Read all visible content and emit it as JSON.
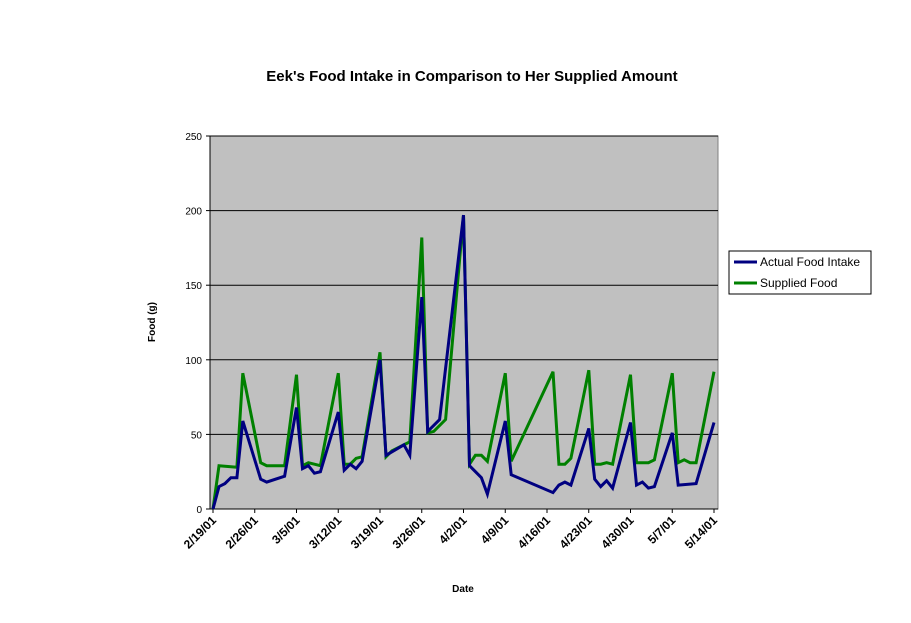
{
  "chart_data": {
    "type": "line",
    "title": "Eek's Food Intake in Comparison to Her Supplied Amount",
    "xlabel": "Date",
    "ylabel": "Food (g)",
    "ylim": [
      0,
      250
    ],
    "yticks": [
      0,
      50,
      100,
      150,
      200,
      250
    ],
    "xlim": [
      "2001-02-19",
      "2001-05-14"
    ],
    "xtick_labels": [
      "2/19/01",
      "2/26/01",
      "3/5/01",
      "3/12/01",
      "3/19/01",
      "3/26/01",
      "4/2/01",
      "4/9/01",
      "4/16/01",
      "4/23/01",
      "4/30/01",
      "5/7/01",
      "5/14/01"
    ],
    "grid": "horizontal",
    "legend_position": "right",
    "plot_background": "#c0c0c0",
    "series": [
      {
        "name": "Actual Food Intake",
        "color": "#000080",
        "points": [
          [
            "2001-02-19",
            0
          ],
          [
            "2001-02-20",
            15
          ],
          [
            "2001-02-21",
            17
          ],
          [
            "2001-02-22",
            21
          ],
          [
            "2001-02-23",
            21
          ],
          [
            "2001-02-24",
            59
          ],
          [
            "2001-02-27",
            20
          ],
          [
            "2001-02-28",
            18
          ],
          [
            "2001-03-03",
            22
          ],
          [
            "2001-03-05",
            68
          ],
          [
            "2001-03-06",
            27
          ],
          [
            "2001-03-07",
            29
          ],
          [
            "2001-03-08",
            24
          ],
          [
            "2001-03-09",
            25
          ],
          [
            "2001-03-12",
            65
          ],
          [
            "2001-03-13",
            26
          ],
          [
            "2001-03-14",
            30
          ],
          [
            "2001-03-15",
            27
          ],
          [
            "2001-03-16",
            32
          ],
          [
            "2001-03-19",
            100
          ],
          [
            "2001-03-20",
            36
          ],
          [
            "2001-03-23",
            43
          ],
          [
            "2001-03-24",
            36
          ],
          [
            "2001-03-26",
            142
          ],
          [
            "2001-03-27",
            52
          ],
          [
            "2001-03-29",
            60
          ],
          [
            "2001-04-02",
            197
          ],
          [
            "2001-04-03",
            29
          ],
          [
            "2001-04-05",
            21
          ],
          [
            "2001-04-06",
            10
          ],
          [
            "2001-04-09",
            59
          ],
          [
            "2001-04-10",
            23
          ],
          [
            "2001-04-17",
            11
          ],
          [
            "2001-04-18",
            16
          ],
          [
            "2001-04-19",
            18
          ],
          [
            "2001-04-20",
            16
          ],
          [
            "2001-04-23",
            54
          ],
          [
            "2001-04-24",
            20
          ],
          [
            "2001-04-25",
            15
          ],
          [
            "2001-04-26",
            19
          ],
          [
            "2001-04-27",
            14
          ],
          [
            "2001-04-30",
            58
          ],
          [
            "2001-05-01",
            16
          ],
          [
            "2001-05-02",
            18
          ],
          [
            "2001-05-03",
            14
          ],
          [
            "2001-05-04",
            15
          ],
          [
            "2001-05-07",
            51
          ],
          [
            "2001-05-08",
            16
          ],
          [
            "2001-05-11",
            17
          ],
          [
            "2001-05-14",
            58
          ]
        ]
      },
      {
        "name": "Supplied Food",
        "color": "#008000",
        "points": [
          [
            "2001-02-19",
            0
          ],
          [
            "2001-02-20",
            29
          ],
          [
            "2001-02-23",
            28
          ],
          [
            "2001-02-24",
            91
          ],
          [
            "2001-02-27",
            31
          ],
          [
            "2001-02-28",
            29
          ],
          [
            "2001-03-03",
            29
          ],
          [
            "2001-03-05",
            90
          ],
          [
            "2001-03-06",
            29
          ],
          [
            "2001-03-07",
            31
          ],
          [
            "2001-03-09",
            29
          ],
          [
            "2001-03-12",
            91
          ],
          [
            "2001-03-13",
            30
          ],
          [
            "2001-03-14",
            30
          ],
          [
            "2001-03-15",
            34
          ],
          [
            "2001-03-16",
            35
          ],
          [
            "2001-03-19",
            105
          ],
          [
            "2001-03-20",
            35
          ],
          [
            "2001-03-21",
            39
          ],
          [
            "2001-03-24",
            45
          ],
          [
            "2001-03-26",
            182
          ],
          [
            "2001-03-27",
            51
          ],
          [
            "2001-03-28",
            52
          ],
          [
            "2001-03-30",
            60
          ],
          [
            "2001-04-02",
            197
          ],
          [
            "2001-04-03",
            30
          ],
          [
            "2001-04-04",
            36
          ],
          [
            "2001-04-05",
            36
          ],
          [
            "2001-04-06",
            32
          ],
          [
            "2001-04-09",
            91
          ],
          [
            "2001-04-10",
            32
          ],
          [
            "2001-04-17",
            92
          ],
          [
            "2001-04-18",
            30
          ],
          [
            "2001-04-19",
            30
          ],
          [
            "2001-04-20",
            34
          ],
          [
            "2001-04-23",
            93
          ],
          [
            "2001-04-24",
            30
          ],
          [
            "2001-04-25",
            30
          ],
          [
            "2001-04-26",
            31
          ],
          [
            "2001-04-27",
            30
          ],
          [
            "2001-04-30",
            90
          ],
          [
            "2001-05-01",
            31
          ],
          [
            "2001-05-02",
            31
          ],
          [
            "2001-05-03",
            31
          ],
          [
            "2001-05-04",
            33
          ],
          [
            "2001-05-07",
            91
          ],
          [
            "2001-05-08",
            31
          ],
          [
            "2001-05-09",
            33
          ],
          [
            "2001-05-10",
            31
          ],
          [
            "2001-05-11",
            31
          ],
          [
            "2001-05-14",
            92
          ]
        ]
      }
    ]
  }
}
